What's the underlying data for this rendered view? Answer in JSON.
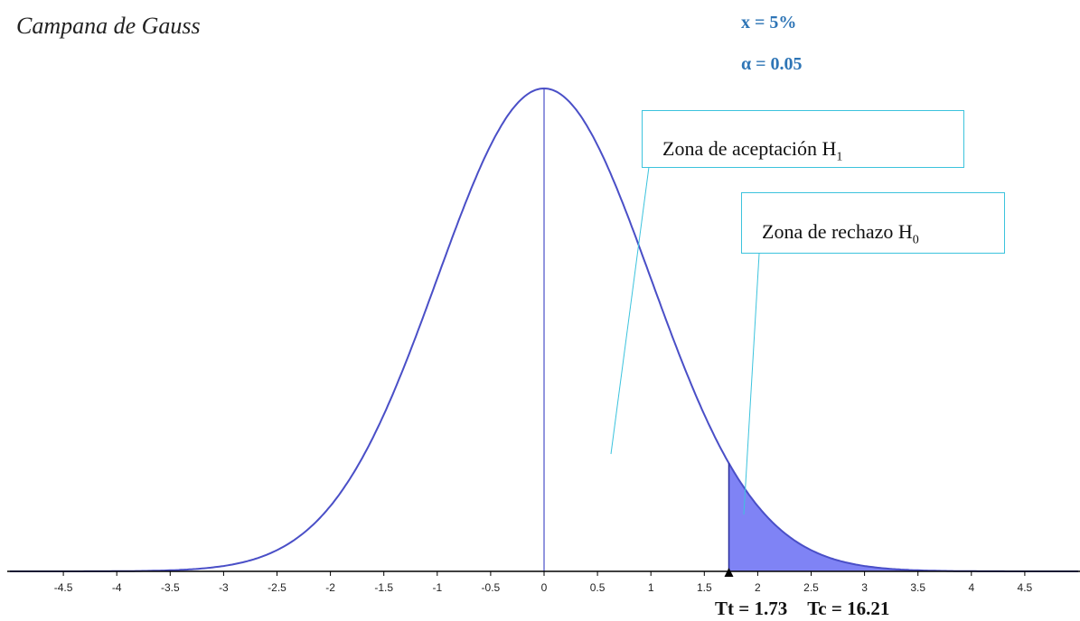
{
  "title": "Campana de Gauss",
  "params": {
    "x_label": "x = 5%",
    "alpha_label": "α = 0.05"
  },
  "annotations": {
    "acceptance": {
      "text": "Zona de aceptación H",
      "sub": "1"
    },
    "rejection": {
      "text": "Zona de rechazo H",
      "sub": "0"
    }
  },
  "t_labels": {
    "tt": "Tt = 1.73",
    "tc": "Tc = 16.21"
  },
  "colors": {
    "curve": "#4a4fc7",
    "fill": "#7f83f5",
    "axis": "#000000",
    "box_border": "#3cc3dd",
    "param_text": "#2e75b6"
  },
  "chart_data": {
    "type": "area",
    "distribution": "standard normal",
    "mean": 0,
    "sd": 1,
    "xlim": [
      -5,
      5
    ],
    "ticks": [
      -4.5,
      -4,
      -3.5,
      -3,
      -2.5,
      -2,
      -1.5,
      -1,
      -0.5,
      0,
      0.5,
      1,
      1.5,
      2,
      2.5,
      3,
      3.5,
      4,
      4.5
    ],
    "tick_labels": [
      "-4.5",
      "-4",
      "-3.5",
      "-3",
      "-2.5",
      "-2",
      "-1.5",
      "-1",
      "-0.5",
      "0",
      "0.5",
      "1",
      "1.5",
      "2",
      "2.5",
      "3",
      "3.5",
      "4",
      "4.5"
    ],
    "shaded_region": [
      1.73,
      5
    ],
    "critical_value": 1.73,
    "center_line": 0,
    "grid": false
  }
}
